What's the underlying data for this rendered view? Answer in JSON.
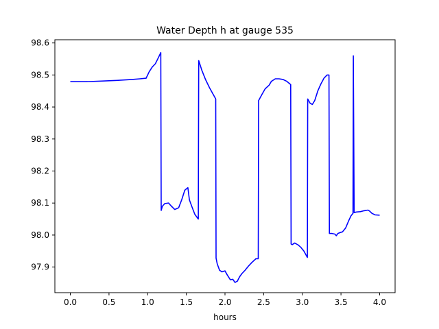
{
  "chart_data": {
    "type": "line",
    "title": "Water Depth h at gauge 535",
    "xlabel": "hours",
    "ylabel": "",
    "xlim": [
      -0.2,
      4.2
    ],
    "ylim": [
      97.82,
      98.61
    ],
    "xticks": [
      0.0,
      0.5,
      1.0,
      1.5,
      2.0,
      2.5,
      3.0,
      3.5,
      4.0
    ],
    "xtick_labels": [
      "0.0",
      "0.5",
      "1.0",
      "1.5",
      "2.0",
      "2.5",
      "3.0",
      "3.5",
      "4.0"
    ],
    "yticks": [
      97.9,
      98.0,
      98.1,
      98.2,
      98.3,
      98.4,
      98.5,
      98.6
    ],
    "ytick_labels": [
      "97.9",
      "98.0",
      "98.1",
      "98.2",
      "98.3",
      "98.4",
      "98.5",
      "98.6"
    ],
    "grid": false,
    "legend": "none",
    "series": [
      {
        "color": "#0000ff",
        "x": [
          0.0,
          0.2,
          0.4,
          0.6,
          0.8,
          0.9,
          0.98,
          1.02,
          1.06,
          1.1,
          1.14,
          1.17,
          1.175,
          1.19,
          1.22,
          1.27,
          1.3,
          1.35,
          1.4,
          1.44,
          1.48,
          1.52,
          1.54,
          1.57,
          1.61,
          1.655,
          1.66,
          1.7,
          1.75,
          1.8,
          1.88,
          1.885,
          1.9,
          1.93,
          1.96,
          2.0,
          2.03,
          2.07,
          2.1,
          2.13,
          2.16,
          2.19,
          2.22,
          2.26,
          2.3,
          2.35,
          2.4,
          2.43,
          2.435,
          2.48,
          2.52,
          2.57,
          2.6,
          2.65,
          2.7,
          2.75,
          2.8,
          2.85,
          2.855,
          2.87,
          2.9,
          2.94,
          2.98,
          3.02,
          3.065,
          3.07,
          3.1,
          3.13,
          3.16,
          3.2,
          3.24,
          3.28,
          3.32,
          3.345,
          3.35,
          3.38,
          3.42,
          3.44,
          3.46,
          3.49,
          3.52,
          3.56,
          3.6,
          3.63,
          3.655,
          3.66,
          3.67,
          3.7,
          3.75,
          3.8,
          3.85,
          3.87,
          3.9,
          3.94,
          4.0
        ],
        "y": [
          98.479,
          98.479,
          98.481,
          98.483,
          98.486,
          98.488,
          98.49,
          98.51,
          98.525,
          98.535,
          98.555,
          98.57,
          98.077,
          98.09,
          98.098,
          98.1,
          98.092,
          98.08,
          98.085,
          98.11,
          98.14,
          98.148,
          98.11,
          98.09,
          98.065,
          98.05,
          98.545,
          98.515,
          98.485,
          98.46,
          98.425,
          97.928,
          97.91,
          97.89,
          97.885,
          97.888,
          97.875,
          97.86,
          97.862,
          97.852,
          97.856,
          97.87,
          97.88,
          97.89,
          97.902,
          97.915,
          97.926,
          97.926,
          98.42,
          98.44,
          98.457,
          98.468,
          98.48,
          98.488,
          98.488,
          98.486,
          98.48,
          98.47,
          97.972,
          97.97,
          97.975,
          97.97,
          97.962,
          97.95,
          97.93,
          98.425,
          98.412,
          98.408,
          98.42,
          98.45,
          98.472,
          98.49,
          98.5,
          98.5,
          98.005,
          98.005,
          98.003,
          97.998,
          98.005,
          98.008,
          98.01,
          98.022,
          98.045,
          98.06,
          98.068,
          98.56,
          98.07,
          98.072,
          98.073,
          98.076,
          98.078,
          98.075,
          98.068,
          98.063,
          98.062
        ]
      }
    ]
  }
}
